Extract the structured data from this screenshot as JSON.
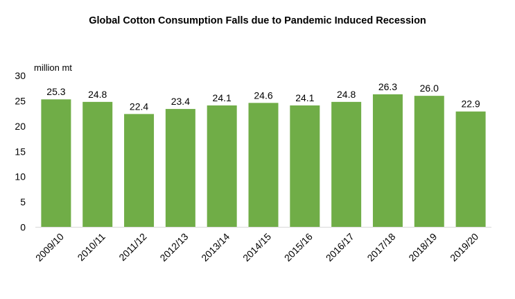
{
  "chart_data": {
    "type": "bar",
    "title": "Global Cotton Consumption Falls due to Pandemic Induced Recession",
    "ylabel": "million mt",
    "xlabel": "",
    "categories": [
      "2009/10",
      "2010/11",
      "2011/12",
      "2012/13",
      "2013/14",
      "2014/15",
      "2015/16",
      "2016/17",
      "2017/18",
      "2018/19",
      "2019/20"
    ],
    "values": [
      25.3,
      24.8,
      22.4,
      23.4,
      24.1,
      24.6,
      24.1,
      24.8,
      26.3,
      26.0,
      22.9
    ],
    "data_labels": [
      "25.3",
      "24.8",
      "22.4",
      "23.4",
      "24.1",
      "24.6",
      "24.1",
      "24.8",
      "26.3",
      "26.0",
      "22.9"
    ],
    "ylim": [
      0,
      30
    ],
    "yticks": [
      "0",
      "5",
      "10",
      "15",
      "20",
      "25",
      "30"
    ],
    "bar_color": "#70ad47",
    "grid": false,
    "legend": "none"
  }
}
